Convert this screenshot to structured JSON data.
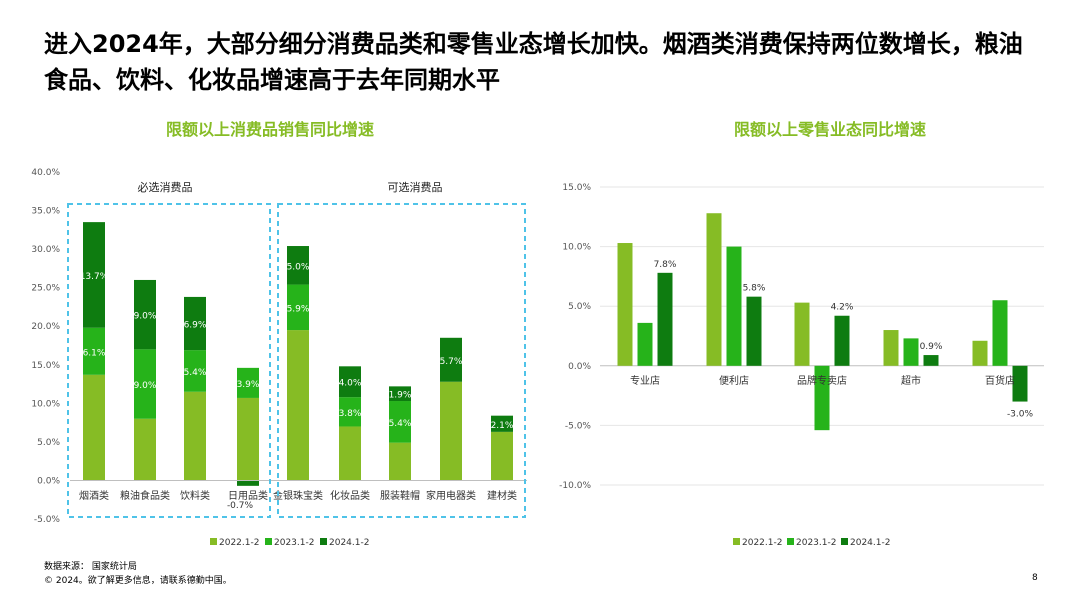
{
  "page": {
    "title": "进入2024年，大部分细分消费品类和零售业态增长加快。烟酒类消费保持两位数增长，粮油食品、饮料、化妆品增速高于去年同期水平",
    "source": "数据来源：  国家统计局",
    "copyright": "© 2024。欲了解更多信息，请联系德勤中国。",
    "page_number": "8"
  },
  "colors": {
    "s2022": "#86bc25",
    "s2023": "#26b31a",
    "s2024": "#0e7c10",
    "group_border": "#4fc3e8",
    "axis_text": "#555555"
  },
  "chart_data": [
    {
      "type": "bar",
      "stacked": true,
      "title": "限额以上消费品销售同比增速",
      "categories": [
        "烟酒类",
        "粮油食品类",
        "饮料类",
        "日用品类",
        "金银珠宝类",
        "化妆品类",
        "服装鞋帽",
        "家用电器类",
        "建材类"
      ],
      "series": [
        {
          "name": "2022.1-2",
          "values": [
            13.7,
            8.0,
            11.5,
            10.7,
            19.5,
            7.0,
            4.9,
            12.8,
            6.3
          ]
        },
        {
          "name": "2023.1-2",
          "values": [
            6.1,
            9.0,
            5.4,
            3.9,
            5.9,
            3.8,
            5.4,
            0.0,
            0.0
          ]
        },
        {
          "name": "2024.1-2",
          "values": [
            13.7,
            9.0,
            6.9,
            -0.7,
            5.0,
            4.0,
            1.9,
            5.7,
            2.1
          ]
        }
      ],
      "data_labels": [
        [
          "",
          "",
          "",
          "",
          "",
          "",
          "",
          "",
          ""
        ],
        [
          "6.1%",
          "9.0%",
          "5.4%",
          "3.9%",
          "5.9%",
          "3.8%",
          "5.4%",
          "",
          ""
        ],
        [
          "13.7%",
          "9.0%",
          "6.9%",
          "-0.7%",
          "5.0%",
          "4.0%",
          "1.9%",
          "5.7%",
          "2.1%"
        ]
      ],
      "groups": [
        {
          "label": "必选消费品",
          "categories": [
            "烟酒类",
            "粮油食品类",
            "饮料类",
            "日用品类"
          ]
        },
        {
          "label": "可选消费品",
          "categories": [
            "金银珠宝类",
            "化妆品类",
            "服装鞋帽",
            "家用电器类",
            "建材类"
          ]
        }
      ],
      "ylim": [
        -5,
        40
      ],
      "yticks": [
        "-5.0%",
        "0.0%",
        "5.0%",
        "10.0%",
        "15.0%",
        "20.0%",
        "25.0%",
        "30.0%",
        "35.0%",
        "40.0%"
      ],
      "legend": "bottom"
    },
    {
      "type": "bar",
      "stacked": false,
      "title": "限额以上零售业态同比增速",
      "categories": [
        "专业店",
        "便利店",
        "品牌专卖店",
        "超市",
        "百货店"
      ],
      "series": [
        {
          "name": "2022.1-2",
          "values": [
            10.3,
            12.8,
            5.3,
            3.0,
            2.1
          ]
        },
        {
          "name": "2023.1-2",
          "values": [
            3.6,
            10.0,
            -5.4,
            2.3,
            5.5
          ]
        },
        {
          "name": "2024.1-2",
          "values": [
            7.8,
            5.8,
            4.2,
            0.9,
            -3.0
          ]
        }
      ],
      "data_labels": [
        [
          "",
          "",
          "",
          "",
          ""
        ],
        [
          "",
          "",
          "",
          "",
          ""
        ],
        [
          "7.8%",
          "5.8%",
          "4.2%",
          "0.9%",
          "-3.0%"
        ]
      ],
      "ylim": [
        -10,
        15
      ],
      "yticks": [
        "-10.0%",
        "-5.0%",
        "0.0%",
        "5.0%",
        "10.0%",
        "15.0%"
      ],
      "legend": "bottom"
    }
  ]
}
